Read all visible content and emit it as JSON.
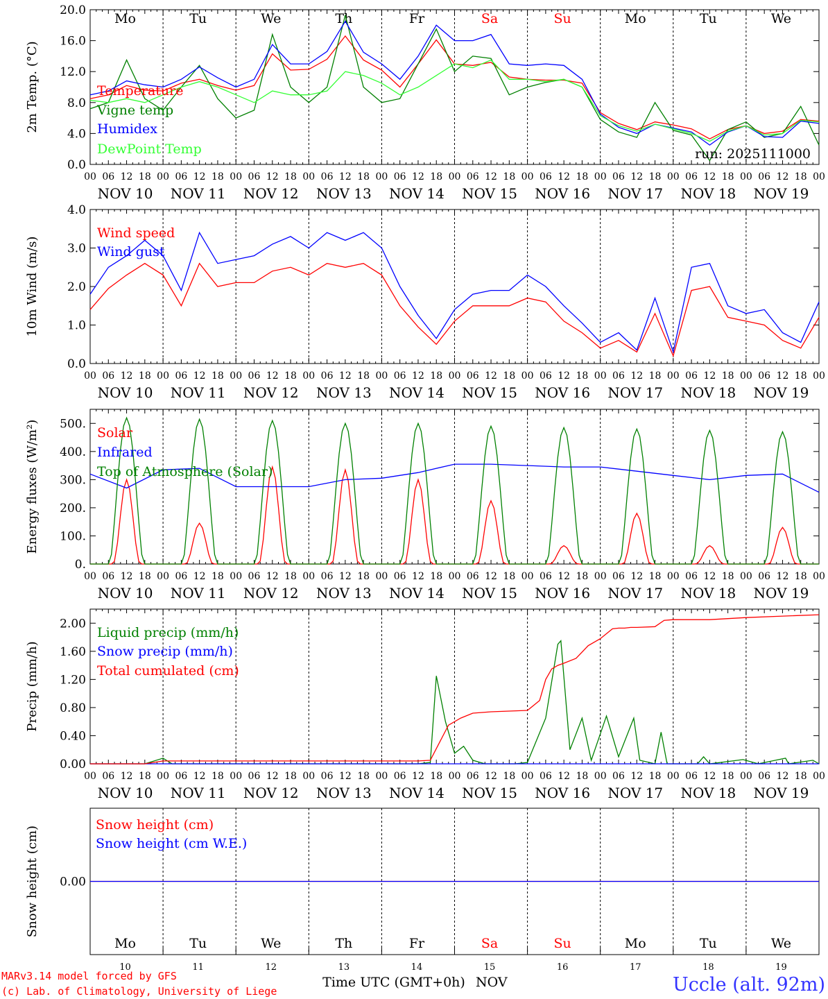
{
  "station": "Uccle (alt. 92m)",
  "run_label": "run: 2025111000",
  "credits": {
    "line1": "MARv3.14 model forced by GFS",
    "line2": "(c) Lab. of Climatology, University of Liege"
  },
  "x_axis_title": "Time UTC (GMT+0h)",
  "month": "NOV",
  "hour_labels": [
    "00",
    "06",
    "12",
    "18"
  ],
  "dates": [
    "NOV 10",
    "NOV 11",
    "NOV 12",
    "NOV 13",
    "NOV 14",
    "NOV 15",
    "NOV 16",
    "NOV 17",
    "NOV 18",
    "NOV 19"
  ],
  "day_numbers": [
    "10",
    "11",
    "12",
    "13",
    "14",
    "15",
    "16",
    "17",
    "18",
    "19"
  ],
  "weekdays": [
    "Mo",
    "Tu",
    "We",
    "Th",
    "Fr",
    "Sa",
    "Su",
    "Mo",
    "Tu",
    "We"
  ],
  "weekend_days": [
    5,
    6
  ],
  "colors": {
    "red": "#ff0000",
    "blue": "#0000ff",
    "dark_green": "#008000",
    "light_green": "#33ff33",
    "station_blue": "#3333ff"
  },
  "chart_data": [
    {
      "id": "temperature",
      "type": "line",
      "ylabel": "2m Temp. (°C)",
      "ylim": [
        0,
        20
      ],
      "ticks": [
        "0.0",
        "4.0",
        "8.0",
        "12.0",
        "16.0",
        "20.0"
      ],
      "tick_values": [
        0,
        4,
        8,
        12,
        16,
        20
      ],
      "x_hours": [
        0,
        6,
        12,
        18,
        24,
        30,
        36,
        42,
        48,
        54,
        60,
        66,
        72,
        78,
        84,
        90,
        96,
        102,
        108,
        114,
        120,
        126,
        132,
        138,
        144,
        150,
        156,
        162,
        168,
        174,
        180,
        186,
        192,
        198,
        204,
        210,
        216,
        222,
        228,
        234,
        240
      ],
      "series": [
        {
          "name": "Temperature",
          "color": "#ff0000",
          "values": [
            8.5,
            9.0,
            10.2,
            9.6,
            9.5,
            10.5,
            11.0,
            10.2,
            9.6,
            10.2,
            14.3,
            12.2,
            12.3,
            13.6,
            16.6,
            13.5,
            12.2,
            10.0,
            13.0,
            16.1,
            13.0,
            12.8,
            13.2,
            11.3,
            11.0,
            10.9,
            10.9,
            10.5,
            6.7,
            5.3,
            4.5,
            5.5,
            5.1,
            4.6,
            3.3,
            4.5,
            5.0,
            4.0,
            4.3,
            5.8,
            5.6
          ]
        },
        {
          "name": "Vigne temp",
          "color": "#008000",
          "values": [
            7.2,
            8.0,
            13.5,
            8.5,
            7.0,
            10.0,
            12.8,
            8.5,
            6.0,
            7.0,
            16.8,
            10.0,
            8.0,
            10.0,
            19.3,
            10.0,
            8.0,
            8.5,
            13.0,
            17.5,
            12.0,
            14.0,
            13.7,
            9.0,
            10.0,
            10.6,
            11.0,
            10.0,
            5.8,
            4.2,
            3.5,
            8.0,
            4.4,
            3.8,
            0.5,
            4.5,
            5.5,
            3.5,
            4.0,
            7.5,
            2.5
          ]
        },
        {
          "name": "Humidex",
          "color": "#0000ff",
          "values": [
            9.0,
            9.5,
            10.8,
            10.3,
            10.0,
            11.0,
            12.6,
            11.2,
            10.0,
            11.0,
            15.5,
            13.0,
            13.0,
            14.6,
            18.5,
            14.5,
            13.0,
            11.0,
            14.0,
            18.0,
            16.0,
            16.0,
            16.8,
            13.0,
            12.8,
            13.0,
            12.8,
            11.0,
            6.5,
            4.8,
            4.0,
            5.2,
            4.7,
            4.2,
            2.5,
            4.2,
            5.0,
            3.6,
            3.5,
            5.6,
            5.3
          ]
        },
        {
          "name": "DewPoint Temp",
          "color": "#33ff33",
          "values": [
            8.3,
            8.0,
            8.5,
            8.0,
            9.0,
            10.0,
            10.7,
            10.0,
            9.0,
            8.0,
            9.5,
            9.0,
            9.0,
            9.5,
            12.0,
            11.5,
            10.5,
            9.0,
            10.0,
            11.5,
            13.0,
            12.5,
            13.5,
            11.0,
            11.0,
            10.7,
            11.0,
            10.0,
            6.3,
            5.0,
            4.3,
            5.2,
            4.6,
            4.0,
            3.0,
            4.3,
            5.0,
            3.8,
            4.0,
            5.7,
            5.5
          ]
        }
      ]
    },
    {
      "id": "wind",
      "type": "line",
      "ylabel": "10m Wind (m/s)",
      "ylim": [
        0,
        4
      ],
      "ticks": [
        "0.0",
        "1.0",
        "2.0",
        "3.0",
        "4.0"
      ],
      "tick_values": [
        0,
        1,
        2,
        3,
        4
      ],
      "x_hours": [
        0,
        6,
        12,
        18,
        24,
        30,
        36,
        42,
        48,
        54,
        60,
        66,
        72,
        78,
        84,
        90,
        96,
        102,
        108,
        114,
        120,
        126,
        132,
        138,
        144,
        150,
        156,
        162,
        168,
        174,
        180,
        186,
        192,
        198,
        204,
        210,
        216,
        222,
        228,
        234,
        240
      ],
      "series": [
        {
          "name": "Wind speed",
          "color": "#ff0000",
          "values": [
            1.4,
            1.95,
            2.3,
            2.6,
            2.3,
            1.5,
            2.6,
            2.0,
            2.1,
            2.1,
            2.4,
            2.5,
            2.3,
            2.6,
            2.5,
            2.6,
            2.3,
            1.5,
            0.95,
            0.5,
            1.1,
            1.5,
            1.5,
            1.5,
            1.7,
            1.6,
            1.1,
            0.8,
            0.4,
            0.6,
            0.3,
            1.3,
            0.2,
            1.9,
            2.0,
            1.2,
            1.1,
            1.0,
            0.6,
            0.4,
            1.2
          ]
        },
        {
          "name": "Wind gust",
          "color": "#0000ff",
          "values": [
            1.8,
            2.5,
            2.8,
            3.2,
            2.8,
            1.9,
            3.4,
            2.6,
            2.7,
            2.8,
            3.1,
            3.3,
            3.0,
            3.4,
            3.2,
            3.4,
            3.0,
            2.0,
            1.25,
            0.65,
            1.4,
            1.8,
            1.9,
            1.9,
            2.3,
            2.0,
            1.5,
            1.05,
            0.55,
            0.8,
            0.35,
            1.7,
            0.3,
            2.5,
            2.6,
            1.5,
            1.3,
            1.4,
            0.8,
            0.55,
            1.6
          ]
        }
      ]
    },
    {
      "id": "energy",
      "type": "line",
      "ylabel": "Energy fluxes (W/m²)",
      "ylim": [
        0,
        550
      ],
      "ticks": [
        "0.",
        "100.",
        "200.",
        "300.",
        "400.",
        "500."
      ],
      "tick_values": [
        0,
        100,
        200,
        300,
        400,
        500
      ],
      "series": [
        {
          "name": "Solar",
          "color": "#ff0000",
          "daily_peaks": [
            300,
            145,
            345,
            335,
            300,
            225,
            65,
            180,
            65,
            130
          ]
        },
        {
          "name": "Infrared",
          "color": "#0000ff",
          "x_hours": [
            0,
            12,
            24,
            36,
            48,
            60,
            72,
            84,
            96,
            108,
            120,
            132,
            144,
            156,
            168,
            180,
            192,
            204,
            216,
            228,
            240
          ],
          "values": [
            320,
            270,
            335,
            340,
            275,
            275,
            275,
            300,
            305,
            325,
            355,
            355,
            350,
            345,
            345,
            330,
            315,
            300,
            315,
            320,
            255
          ]
        },
        {
          "name": "Top of Atmosphere (Solar)",
          "color": "#008000",
          "daily_peaks": [
            520,
            515,
            510,
            500,
            500,
            490,
            485,
            480,
            475,
            470
          ]
        }
      ]
    },
    {
      "id": "precip",
      "type": "line",
      "ylabel": "Precip (mm/h)",
      "ylim": [
        0,
        2.2
      ],
      "ticks": [
        "0.00",
        "0.40",
        "0.80",
        "1.20",
        "1.60",
        "2.00"
      ],
      "tick_values": [
        0,
        0.4,
        0.8,
        1.2,
        1.6,
        2.0
      ],
      "series": [
        {
          "name": "Liquid precip (mm/h)",
          "color": "#008000",
          "x_hours": [
            0,
            18,
            24,
            27,
            30,
            108,
            112,
            114,
            117,
            120,
            123,
            126,
            130,
            134,
            140,
            144,
            150,
            154,
            155,
            158,
            162,
            165,
            170,
            174,
            179,
            181,
            186,
            188,
            190,
            200,
            202,
            204,
            215,
            220,
            229,
            230,
            238,
            240
          ],
          "values": [
            0,
            0,
            0.08,
            0,
            0,
            0,
            0.02,
            1.25,
            0.6,
            0.15,
            0.25,
            0.05,
            0,
            0,
            0,
            0.02,
            0.65,
            1.7,
            1.75,
            0.2,
            0.65,
            0.05,
            0.68,
            0.1,
            0.65,
            0.05,
            0,
            0.45,
            0,
            0,
            0.1,
            0,
            0.06,
            0,
            0.08,
            0,
            0.05,
            0
          ]
        },
        {
          "name": "Snow precip (mm/h)",
          "color": "#0000ff",
          "x_hours": [
            0,
            240
          ],
          "values": [
            0,
            0
          ]
        },
        {
          "name": "Total cumulated (cm)",
          "color": "#ff0000",
          "x_hours": [
            0,
            18,
            24,
            108,
            112,
            115,
            118,
            122,
            126,
            132,
            144,
            148,
            150,
            152,
            154,
            156,
            160,
            164,
            168,
            172,
            174,
            176,
            178,
            180,
            186,
            189,
            192,
            198,
            204,
            216,
            228,
            240
          ],
          "values": [
            0,
            0,
            0.04,
            0.04,
            0.05,
            0.3,
            0.55,
            0.65,
            0.72,
            0.74,
            0.76,
            0.9,
            1.2,
            1.35,
            1.4,
            1.43,
            1.5,
            1.68,
            1.78,
            1.92,
            1.93,
            1.93,
            1.94,
            1.94,
            1.95,
            2.04,
            2.05,
            2.05,
            2.05,
            2.08,
            2.1,
            2.12
          ]
        }
      ]
    },
    {
      "id": "snow",
      "type": "line",
      "ylabel": "Snow height (cm)",
      "ylim": [
        -1,
        1
      ],
      "ticks": [
        "0.00"
      ],
      "tick_values": [
        0
      ],
      "x_hours": [
        0,
        240
      ],
      "series": [
        {
          "name": "Snow height (cm)",
          "color": "#ff0000",
          "values": [
            0,
            0
          ]
        },
        {
          "name": "Snow height (cm W.E.)",
          "color": "#0000ff",
          "values": [
            0,
            0
          ]
        }
      ]
    }
  ]
}
